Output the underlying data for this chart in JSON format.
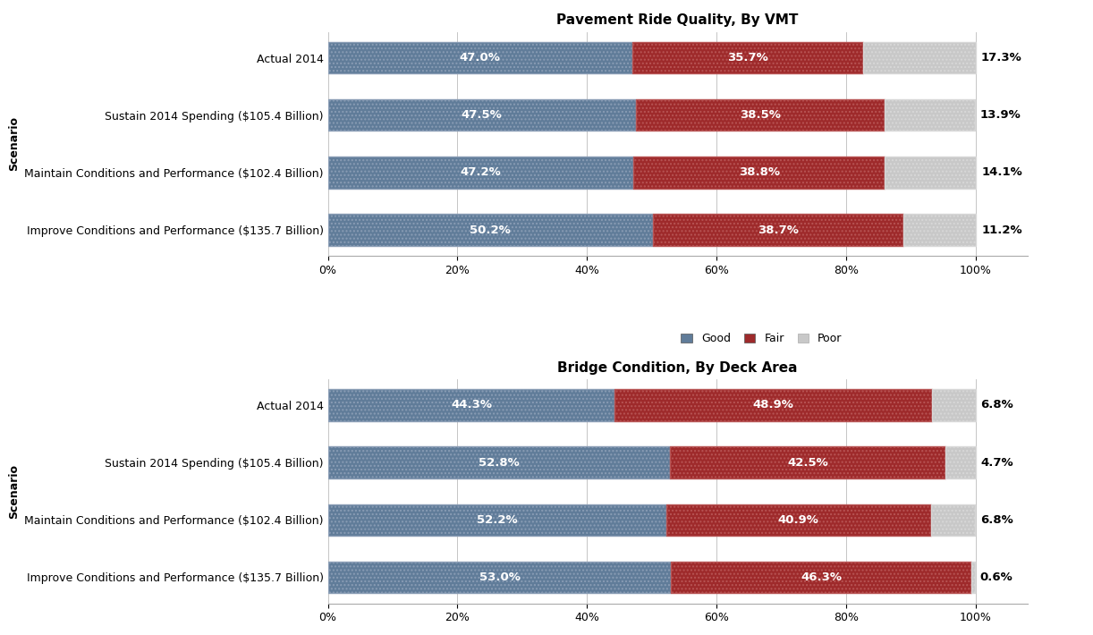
{
  "chart1": {
    "title": "Pavement Ride Quality, By VMT",
    "scenarios": [
      "Improve Conditions and Performance ($135.7 Billion)",
      "Maintain Conditions and Performance ($102.4 Billion)",
      "Sustain 2014 Spending ($105.4 Billion)",
      "Actual 2014"
    ],
    "good": [
      50.2,
      47.2,
      47.5,
      47.0
    ],
    "fair": [
      38.7,
      38.8,
      38.5,
      35.7
    ],
    "poor": [
      11.2,
      14.1,
      13.9,
      17.3
    ]
  },
  "chart2": {
    "title": "Bridge Condition, By Deck Area",
    "scenarios": [
      "Improve Conditions and Performance ($135.7 Billion)",
      "Maintain Conditions and Performance ($102.4 Billion)",
      "Sustain 2014 Spending ($105.4 Billion)",
      "Actual 2014"
    ],
    "good": [
      53.0,
      52.2,
      52.8,
      44.3
    ],
    "fair": [
      46.3,
      40.9,
      42.5,
      48.9
    ],
    "poor": [
      0.6,
      6.8,
      4.7,
      6.8
    ]
  },
  "color_good": "#607c99",
  "color_fair": "#9e2a2b",
  "color_poor": "#c8c8c8",
  "ylabel": "Scenario",
  "background_color": "#ffffff",
  "bar_height": 0.55,
  "title_fontsize": 11,
  "tick_fontsize": 9,
  "label_fontsize": 9.5,
  "legend_fontsize": 9,
  "axis_label_fontsize": 9
}
